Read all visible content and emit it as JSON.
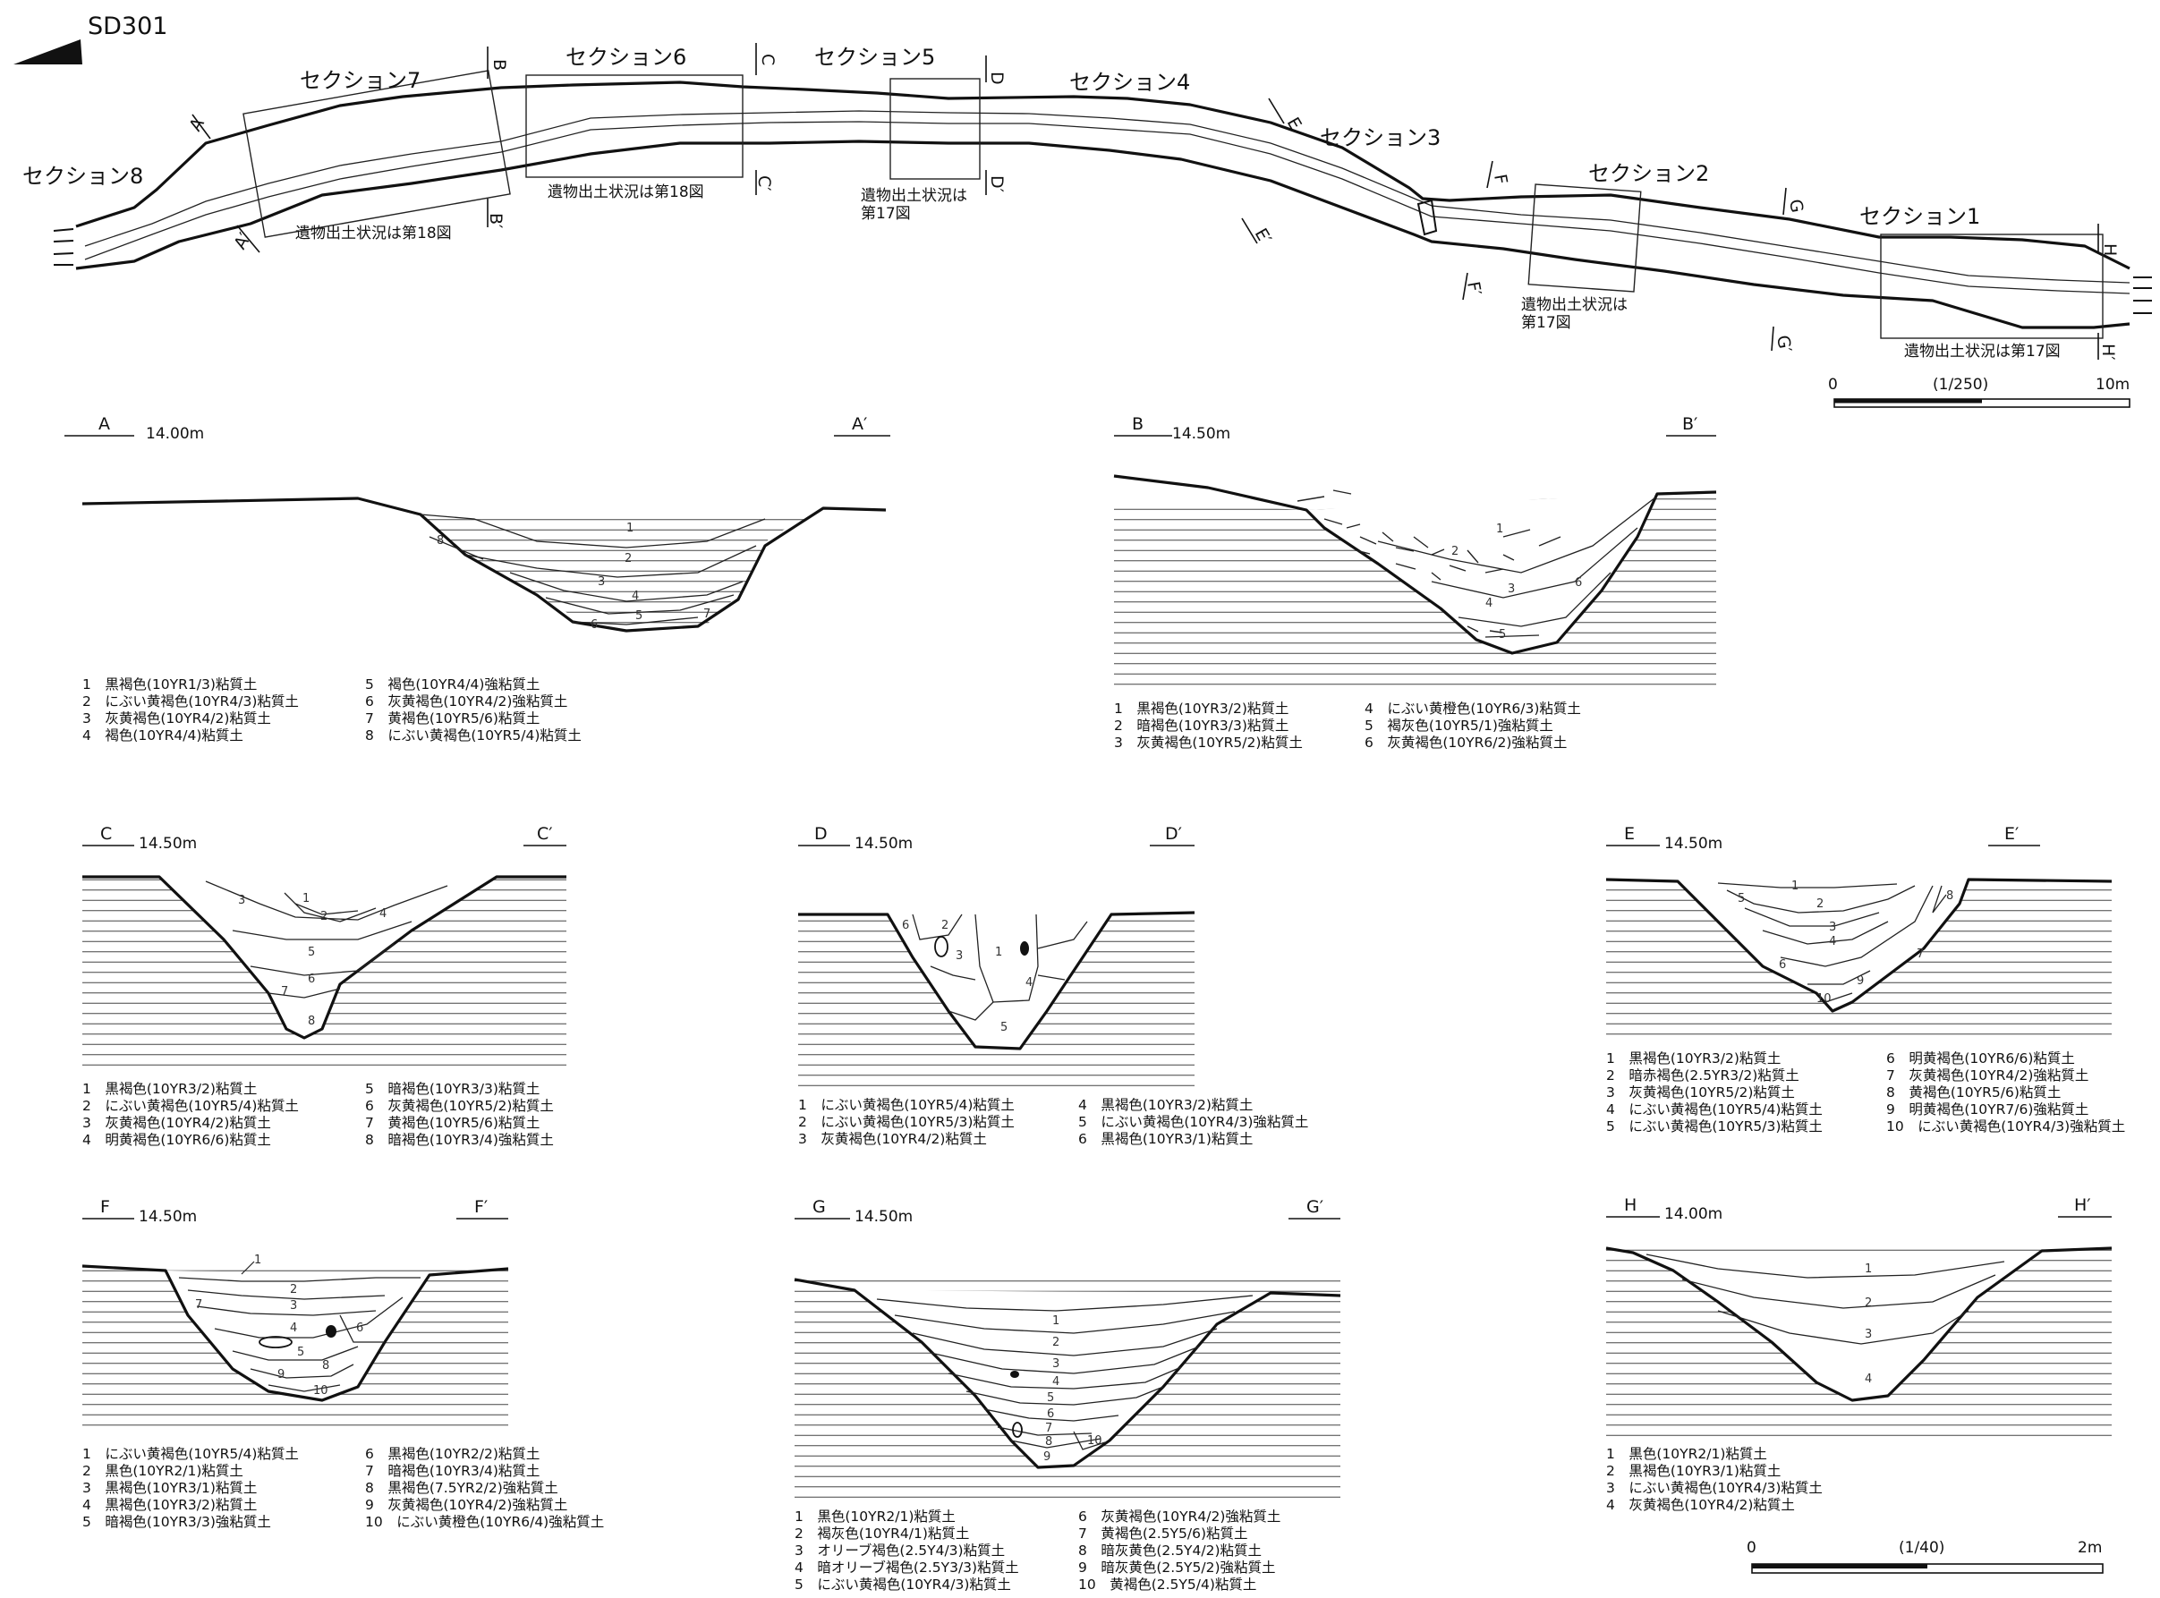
{
  "title": "SD301",
  "plan": {
    "sections": [
      "セクション8",
      "セクション7",
      "セクション6",
      "セクション5",
      "セクション4",
      "セクション3",
      "セクション2",
      "セクション1"
    ],
    "notes": [
      "遺物出土状況は第18図",
      "遺物出土状況は第18図",
      "遺物出土状況は",
      "第17図",
      "遺物出土状況は",
      "第17図",
      "遺物出土状況は第17図"
    ],
    "cut_labels": [
      "A",
      "A′",
      "B",
      "B′",
      "C",
      "C′",
      "D",
      "D′",
      "E",
      "E′",
      "F",
      "F′",
      "G",
      "G′",
      "H",
      "H′"
    ],
    "scale": {
      "start": "0",
      "ratio": "(1/250)",
      "end": "10m"
    }
  },
  "profiles": [
    {
      "id": "A",
      "left": "A",
      "right": "A′",
      "elev": "14.00m",
      "layer_nums": [
        "1",
        "2",
        "3",
        "4",
        "5",
        "6",
        "7",
        "8"
      ],
      "legend": [
        "1　黒褐色(10YR1/3)粘質土",
        "2　にぶい黄褐色(10YR4/3)粘質土",
        "3　灰黄褐色(10YR4/2)粘質土",
        "4　褐色(10YR4/4)粘質土",
        "5　褐色(10YR4/4)強粘質土",
        "6　灰黄褐色(10YR4/2)強粘質土",
        "7　黄褐色(10YR5/6)粘質土",
        "8　にぶい黄褐色(10YR5/4)粘質土"
      ]
    },
    {
      "id": "B",
      "left": "B",
      "right": "B′",
      "elev": "14.50m",
      "layer_nums": [
        "1",
        "2",
        "3",
        "4",
        "5",
        "6"
      ],
      "legend": [
        "1　黒褐色(10YR3/2)粘質土",
        "2　暗褐色(10YR3/3)粘質土",
        "3　灰黄褐色(10YR5/2)粘質土",
        "4　にぶい黄橙色(10YR6/3)粘質土",
        "5　褐灰色(10YR5/1)強粘質土",
        "6　灰黄褐色(10YR6/2)強粘質土"
      ]
    },
    {
      "id": "C",
      "left": "C",
      "right": "C′",
      "elev": "14.50m",
      "layer_nums": [
        "1",
        "2",
        "3",
        "4",
        "5",
        "6",
        "7",
        "8"
      ],
      "legend": [
        "1　黒褐色(10YR3/2)粘質土",
        "2　にぶい黄褐色(10YR5/4)粘質土",
        "3　灰黄褐色(10YR4/2)粘質土",
        "4　明黄褐色(10YR6/6)粘質土",
        "5　暗褐色(10YR3/3)粘質土",
        "6　灰黄褐色(10YR5/2)粘質土",
        "7　黄褐色(10YR5/6)粘質土",
        "8　暗褐色(10YR3/4)強粘質土"
      ]
    },
    {
      "id": "D",
      "left": "D",
      "right": "D′",
      "elev": "14.50m",
      "layer_nums": [
        "1",
        "2",
        "3",
        "4",
        "5",
        "6"
      ],
      "legend": [
        "1　にぶい黄褐色(10YR5/4)粘質土",
        "2　にぶい黄褐色(10YR5/3)粘質土",
        "3　灰黄褐色(10YR4/2)粘質土",
        "4　黒褐色(10YR3/2)粘質土",
        "5　にぶい黄褐色(10YR4/3)強粘質土",
        "6　黒褐色(10YR3/1)粘質土"
      ]
    },
    {
      "id": "E",
      "left": "E",
      "right": "E′",
      "elev": "14.50m",
      "layer_nums": [
        "1",
        "2",
        "3",
        "4",
        "5",
        "6",
        "7",
        "8",
        "9",
        "10"
      ],
      "legend": [
        "1　黒褐色(10YR3/2)粘質土",
        "2　暗赤褐色(2.5YR3/2)粘質土",
        "3　灰黄褐色(10YR5/2)粘質土",
        "4　にぶい黄褐色(10YR5/4)粘質土",
        "5　にぶい黄褐色(10YR5/3)粘質土",
        "6　明黄褐色(10YR6/6)粘質土",
        "7　灰黄褐色(10YR4/2)強粘質土",
        "8　黄褐色(10YR5/6)粘質土",
        "9　明黄褐色(10YR7/6)強粘質土",
        "10　にぶい黄褐色(10YR4/3)強粘質土"
      ]
    },
    {
      "id": "F",
      "left": "F",
      "right": "F′",
      "elev": "14.50m",
      "layer_nums": [
        "1",
        "2",
        "3",
        "4",
        "5",
        "6",
        "7",
        "8",
        "9",
        "10"
      ],
      "legend": [
        "1　にぶい黄褐色(10YR5/4)粘質土",
        "2　黒色(10YR2/1)粘質土",
        "3　黒褐色(10YR3/1)粘質土",
        "4　黒褐色(10YR3/2)粘質土",
        "5　暗褐色(10YR3/3)強粘質土",
        "6　黒褐色(10YR2/2)粘質土",
        "7　暗褐色(10YR3/4)粘質土",
        "8　黒褐色(7.5YR2/2)強粘質土",
        "9　灰黄褐色(10YR4/2)強粘質土",
        "10　にぶい黄橙色(10YR6/4)強粘質土"
      ]
    },
    {
      "id": "G",
      "left": "G",
      "right": "G′",
      "elev": "14.50m",
      "layer_nums": [
        "1",
        "2",
        "3",
        "4",
        "5",
        "6",
        "7",
        "8",
        "9",
        "10"
      ],
      "legend": [
        "1　黒色(10YR2/1)粘質土",
        "2　褐灰色(10YR4/1)粘質土",
        "3　オリーブ褐色(2.5Y4/3)粘質土",
        "4　暗オリーブ褐色(2.5Y3/3)粘質土",
        "5　にぶい黄褐色(10YR4/3)粘質土",
        "6　灰黄褐色(10YR4/2)強粘質土",
        "7　黄褐色(2.5Y5/6)粘質土",
        "8　暗灰黄色(2.5Y4/2)粘質土",
        "9　暗灰黄色(2.5Y5/2)強粘質土",
        "10　黄褐色(2.5Y5/4)粘質土"
      ]
    },
    {
      "id": "H",
      "left": "H",
      "right": "H′",
      "elev": "14.00m",
      "layer_nums": [
        "1",
        "2",
        "3",
        "4"
      ],
      "legend": [
        "1　黒色(10YR2/1)粘質土",
        "2　黒褐色(10YR3/1)粘質土",
        "3　にぶい黄褐色(10YR4/3)粘質土",
        "4　灰黄褐色(10YR4/2)粘質土"
      ]
    }
  ],
  "section_scale": {
    "start": "0",
    "ratio": "(1/40)",
    "end": "2m"
  }
}
